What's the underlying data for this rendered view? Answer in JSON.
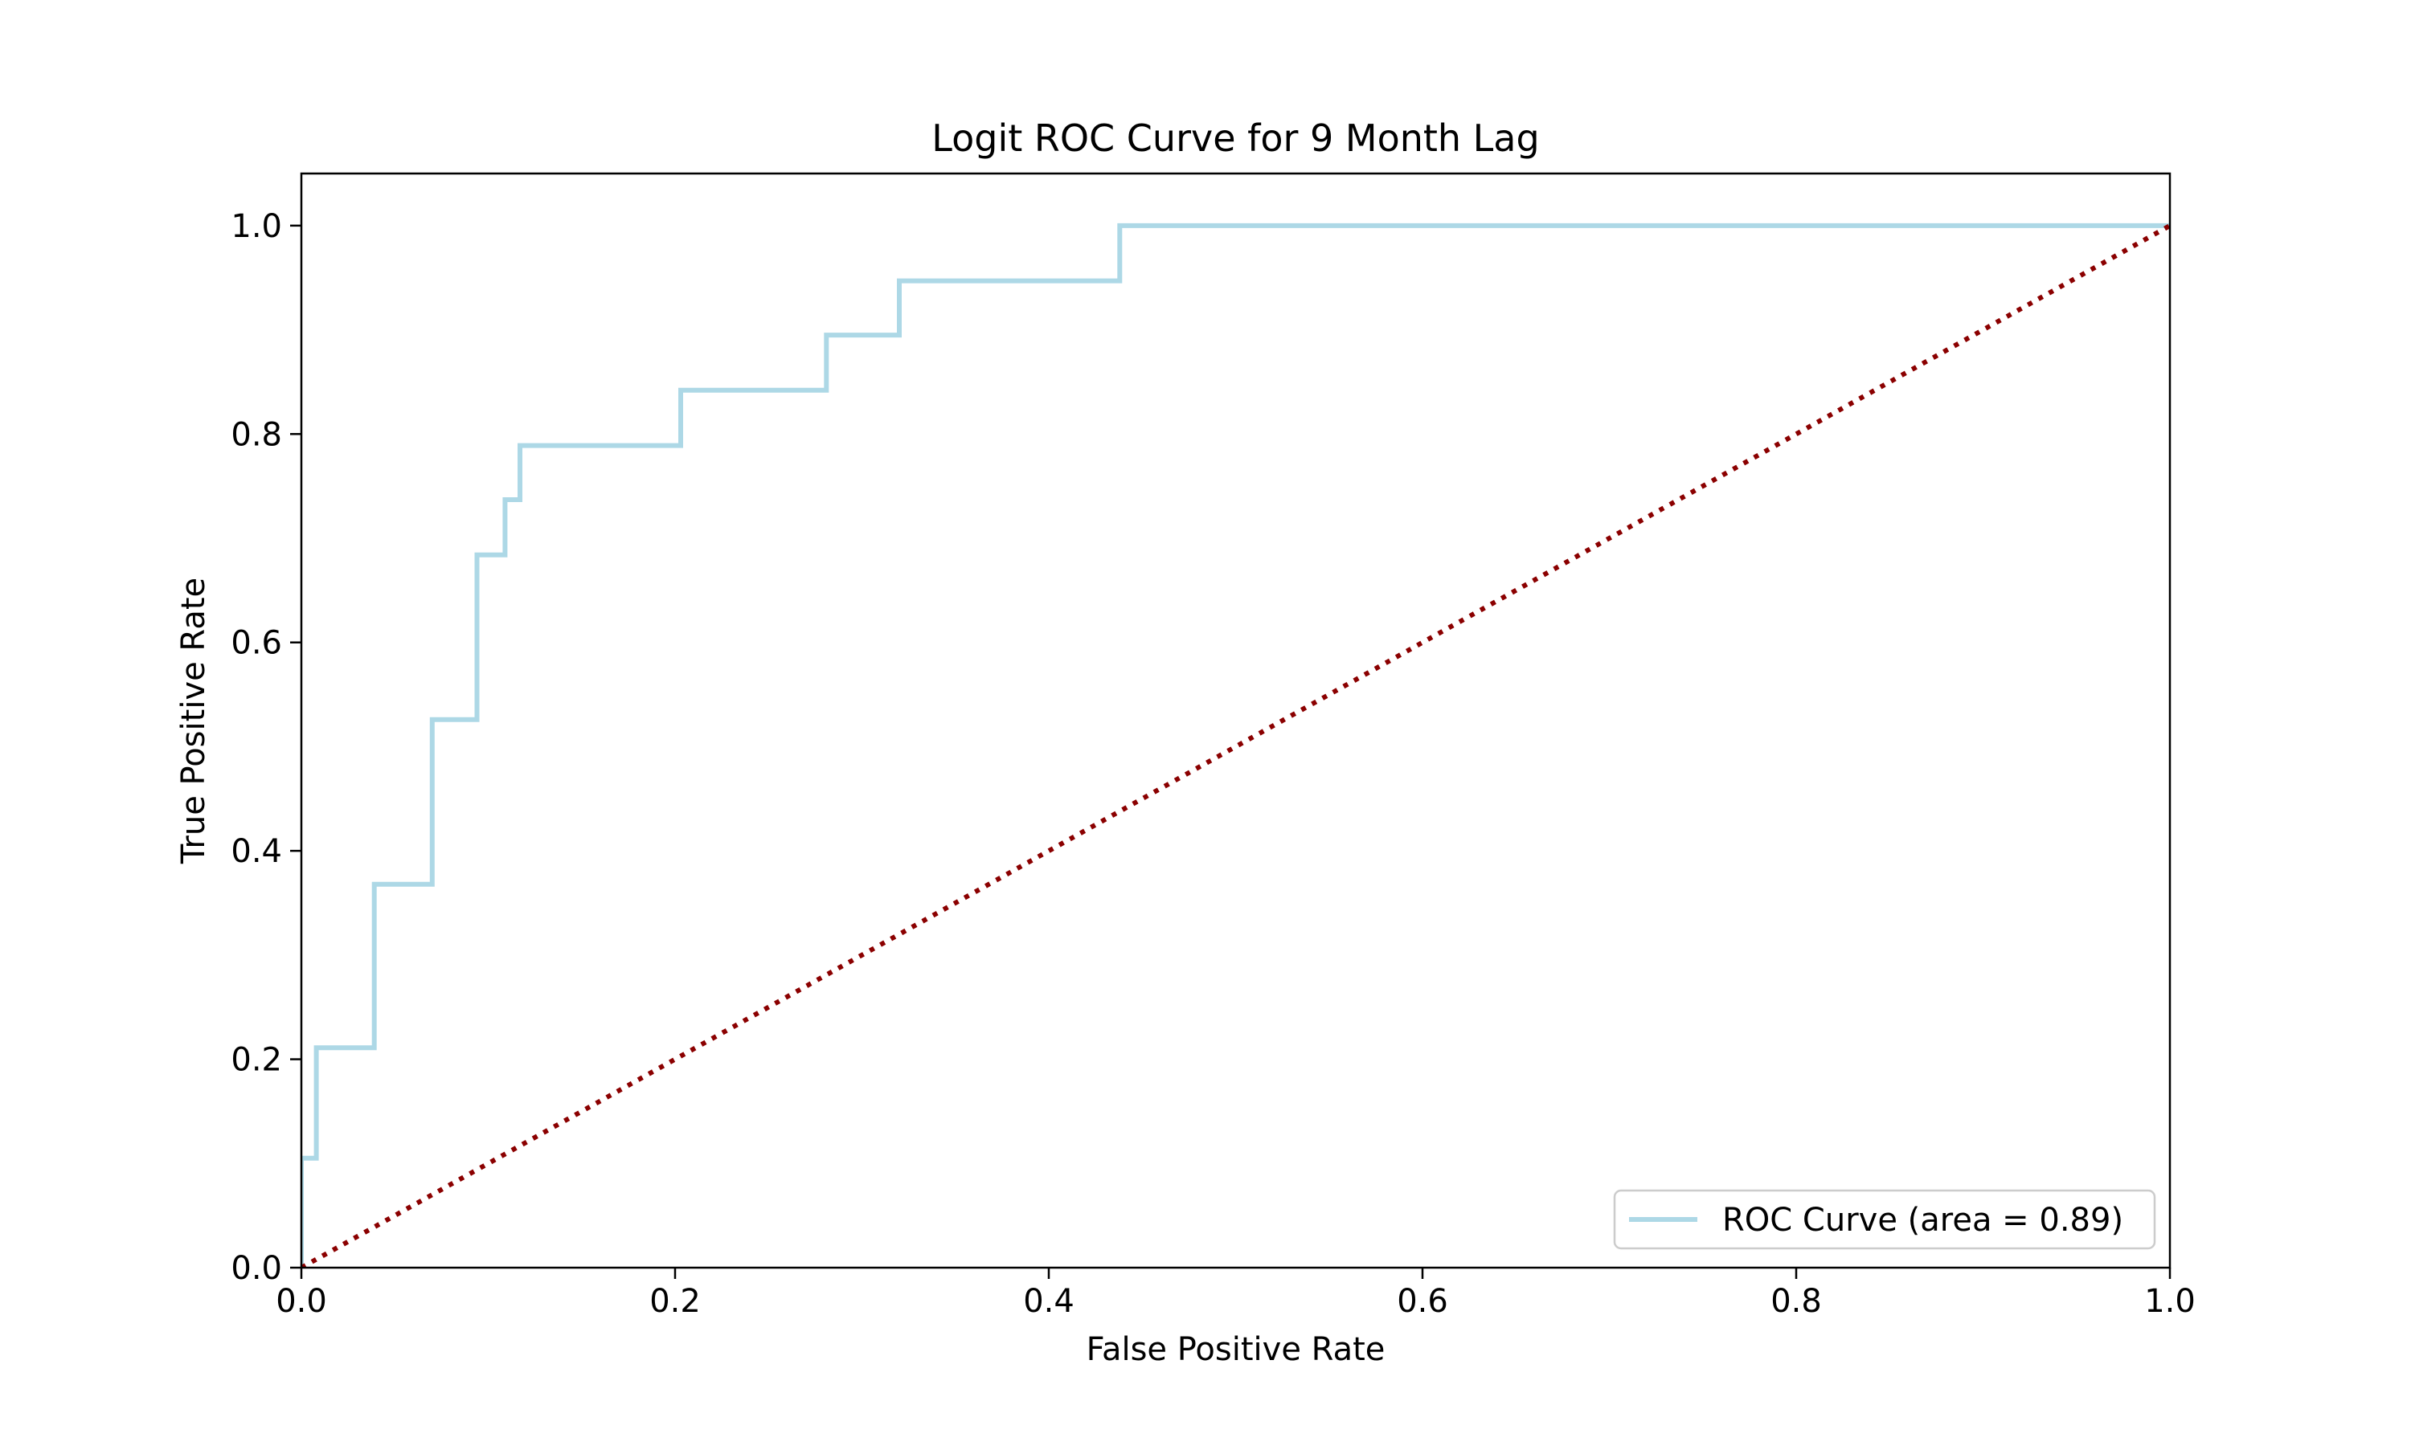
{
  "chart_data": {
    "type": "line",
    "title": "Logit ROC Curve for 9 Month Lag",
    "xlabel": "False Positive Rate",
    "ylabel": "True Positive Rate",
    "xlim": [
      0.0,
      1.0
    ],
    "ylim": [
      0.0,
      1.05
    ],
    "xticks": [
      0.0,
      0.2,
      0.4,
      0.6,
      0.8,
      1.0
    ],
    "xtick_labels": [
      "0.0",
      "0.2",
      "0.4",
      "0.6",
      "0.8",
      "1.0"
    ],
    "yticks": [
      0.0,
      0.2,
      0.4,
      0.6,
      0.8,
      1.0
    ],
    "ytick_labels": [
      "0.0",
      "0.2",
      "0.4",
      "0.6",
      "0.8",
      "1.0"
    ],
    "grid": false,
    "legend_position": "lower-right",
    "series": [
      {
        "name": "ROC Curve (area = 0.89)",
        "style": "solid",
        "color": "#add8e6",
        "x": [
          0.0,
          0.0,
          0.008,
          0.008,
          0.039,
          0.039,
          0.07,
          0.07,
          0.094,
          0.094,
          0.109,
          0.109,
          0.117,
          0.117,
          0.203,
          0.203,
          0.281,
          0.281,
          0.32,
          0.32,
          0.438,
          0.438,
          1.0
        ],
        "y": [
          0.0,
          0.105,
          0.105,
          0.211,
          0.211,
          0.368,
          0.368,
          0.526,
          0.526,
          0.684,
          0.684,
          0.737,
          0.737,
          0.789,
          0.789,
          0.842,
          0.842,
          0.895,
          0.895,
          0.947,
          0.947,
          1.0,
          1.0
        ]
      },
      {
        "style": "dotted",
        "color": "#8b0000",
        "x": [
          0.0,
          1.0
        ],
        "y": [
          0.0,
          1.0
        ]
      }
    ]
  }
}
